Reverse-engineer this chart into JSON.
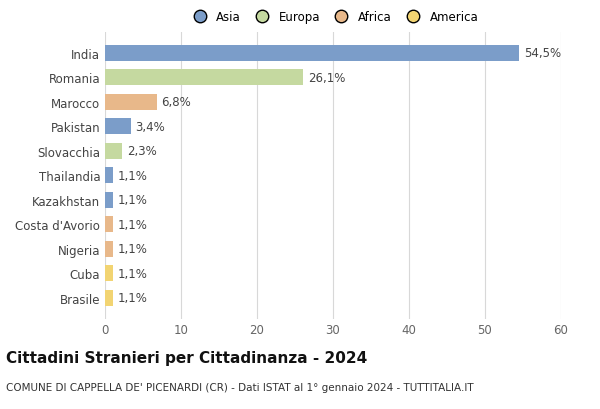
{
  "countries": [
    "India",
    "Romania",
    "Marocco",
    "Pakistan",
    "Slovacchia",
    "Thailandia",
    "Kazakhstan",
    "Costa d'Avorio",
    "Nigeria",
    "Cuba",
    "Brasile"
  ],
  "values": [
    54.5,
    26.1,
    6.8,
    3.4,
    2.3,
    1.1,
    1.1,
    1.1,
    1.1,
    1.1,
    1.1
  ],
  "labels": [
    "54,5%",
    "26,1%",
    "6,8%",
    "3,4%",
    "2,3%",
    "1,1%",
    "1,1%",
    "1,1%",
    "1,1%",
    "1,1%",
    "1,1%"
  ],
  "continents": [
    "Asia",
    "Europa",
    "Africa",
    "Asia",
    "Europa",
    "Asia",
    "Asia",
    "Africa",
    "Africa",
    "America",
    "America"
  ],
  "colors": {
    "Asia": "#7b9dc9",
    "Europa": "#c5d9a0",
    "Africa": "#e8b88a",
    "America": "#f2d472"
  },
  "xlim": [
    0,
    60
  ],
  "xticks": [
    0,
    10,
    20,
    30,
    40,
    50,
    60
  ],
  "title": "Cittadini Stranieri per Cittadinanza - 2024",
  "subtitle": "COMUNE DI CAPPELLA DE' PICENARDI (CR) - Dati ISTAT al 1° gennaio 2024 - TUTTITALIA.IT",
  "background_color": "#ffffff",
  "grid_color": "#d8d8d8",
  "bar_height": 0.65,
  "label_fontsize": 8.5,
  "tick_fontsize": 8.5,
  "title_fontsize": 11,
  "subtitle_fontsize": 7.5,
  "legend_order": [
    "Asia",
    "Europa",
    "Africa",
    "America"
  ]
}
